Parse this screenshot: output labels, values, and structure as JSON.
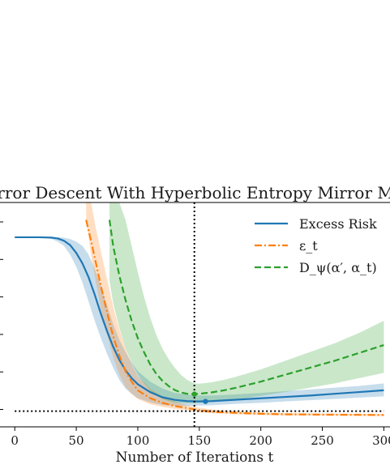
{
  "chart_data": {
    "type": "line",
    "title": "Mirror Descent With Hyperbolic Entropy Mirror Map",
    "xlabel": "Number of Iterations t",
    "ylabel": "",
    "xlim": [
      -12,
      305
    ],
    "ylim": [
      -0.09,
      1.2
    ],
    "xticks": [
      0,
      50,
      100,
      150,
      200,
      250,
      300
    ],
    "xtick_labels": [
      "0",
      "50",
      "100",
      "150",
      "200",
      "250",
      "300"
    ],
    "grid": false,
    "legend_position": "top-right",
    "reference_lines": [
      {
        "orientation": "vertical",
        "x": 146,
        "style": "dotted",
        "color": "#000000"
      },
      {
        "orientation": "horizontal",
        "y": 0,
        "style": "dotted",
        "color": "#000000"
      }
    ],
    "series": [
      {
        "name": "Excess Risk",
        "color": "#1f77b4",
        "style": "solid",
        "x": [
          0,
          10,
          20,
          30,
          35,
          40,
          45,
          50,
          55,
          60,
          65,
          70,
          75,
          80,
          85,
          90,
          95,
          100,
          110,
          120,
          130,
          140,
          150,
          160,
          170,
          180,
          200,
          220,
          240,
          260,
          280,
          300
        ],
        "y": [
          1.0,
          1.0,
          1.0,
          0.998,
          0.993,
          0.98,
          0.955,
          0.91,
          0.85,
          0.77,
          0.67,
          0.56,
          0.46,
          0.37,
          0.295,
          0.235,
          0.19,
          0.155,
          0.11,
          0.08,
          0.065,
          0.058,
          0.056,
          0.058,
          0.062,
          0.066,
          0.074,
          0.082,
          0.09,
          0.1,
          0.11,
          0.12
        ],
        "band_low": [
          1.0,
          1.0,
          1.0,
          0.99,
          0.975,
          0.95,
          0.9,
          0.83,
          0.74,
          0.63,
          0.52,
          0.42,
          0.33,
          0.25,
          0.18,
          0.13,
          0.1,
          0.075,
          0.05,
          0.035,
          0.03,
          0.03,
          0.032,
          0.034,
          0.038,
          0.042,
          0.048,
          0.056,
          0.063,
          0.07,
          0.078,
          0.085
        ],
        "band_high": [
          1.0,
          1.0,
          1.0,
          1.0,
          1.0,
          0.998,
          0.99,
          0.975,
          0.95,
          0.9,
          0.82,
          0.72,
          0.61,
          0.5,
          0.41,
          0.34,
          0.28,
          0.23,
          0.17,
          0.13,
          0.105,
          0.095,
          0.09,
          0.09,
          0.093,
          0.097,
          0.105,
          0.115,
          0.125,
          0.135,
          0.145,
          0.16
        ],
        "marker": {
          "x": 155,
          "y": 0.056
        }
      },
      {
        "name": "ε_t",
        "color": "#ff7f0e",
        "style": "dashdot",
        "x": [
          58,
          62,
          66,
          70,
          75,
          80,
          85,
          90,
          95,
          100,
          110,
          120,
          130,
          140,
          150,
          160,
          180,
          200,
          220,
          250,
          280,
          300
        ],
        "y": [
          1.1,
          0.98,
          0.85,
          0.72,
          0.57,
          0.43,
          0.32,
          0.23,
          0.17,
          0.12,
          0.075,
          0.048,
          0.03,
          0.018,
          0.006,
          -0.003,
          -0.01,
          -0.015,
          -0.018,
          -0.02,
          -0.021,
          -0.022
        ],
        "band_low": [
          1.1,
          0.9,
          0.74,
          0.59,
          0.44,
          0.31,
          0.21,
          0.14,
          0.1,
          0.07,
          0.04,
          0.025,
          0.013,
          0.005,
          -0.006,
          -0.012,
          -0.018,
          -0.022,
          -0.025,
          -0.026,
          -0.027,
          -0.028
        ],
        "band_high": [
          1.2,
          1.2,
          1.05,
          0.92,
          0.76,
          0.6,
          0.47,
          0.36,
          0.27,
          0.2,
          0.13,
          0.085,
          0.055,
          0.035,
          0.02,
          0.01,
          0.0,
          -0.006,
          -0.01,
          -0.013,
          -0.015,
          -0.016
        ]
      },
      {
        "name": "D_ψ(α′, α_t)",
        "color": "#2ca02c",
        "style": "dashed",
        "x": [
          77,
          80,
          85,
          90,
          95,
          100,
          105,
          110,
          115,
          120,
          125,
          130,
          135,
          140,
          146,
          150,
          160,
          170,
          180,
          200,
          220,
          240,
          260,
          280,
          300
        ],
        "y": [
          1.1,
          0.95,
          0.78,
          0.64,
          0.52,
          0.42,
          0.34,
          0.27,
          0.215,
          0.175,
          0.145,
          0.122,
          0.108,
          0.1,
          0.098,
          0.1,
          0.108,
          0.12,
          0.135,
          0.17,
          0.21,
          0.25,
          0.29,
          0.335,
          0.38
        ],
        "band_low": [
          0.75,
          0.62,
          0.48,
          0.36,
          0.28,
          0.21,
          0.16,
          0.12,
          0.09,
          0.07,
          0.058,
          0.05,
          0.047,
          0.046,
          0.046,
          0.048,
          0.053,
          0.06,
          0.068,
          0.088,
          0.11,
          0.135,
          0.16,
          0.19,
          0.22
        ],
        "band_high": [
          1.2,
          1.2,
          1.2,
          1.1,
          0.95,
          0.8,
          0.66,
          0.54,
          0.44,
          0.36,
          0.3,
          0.25,
          0.21,
          0.18,
          0.16,
          0.158,
          0.166,
          0.18,
          0.198,
          0.24,
          0.29,
          0.34,
          0.39,
          0.45,
          0.52
        ],
        "marker": {
          "x": 146,
          "y": 0.098
        }
      }
    ]
  }
}
